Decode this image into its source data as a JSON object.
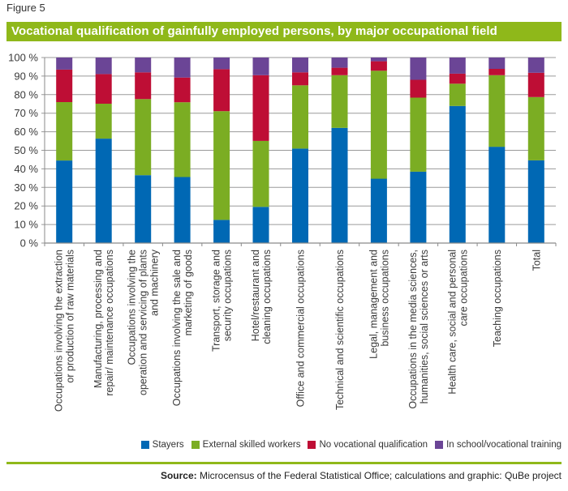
{
  "figure_label": "Figure 5",
  "source": {
    "label": "Source:",
    "text": " Microcensus of the Federal Statistical Office; calculations and graphic: QuBe project"
  },
  "chart_data": {
    "type": "bar",
    "stacked": true,
    "title": "Vocational qualification of gainfully employed persons, by major occupational field",
    "xlabel": "",
    "ylabel": "",
    "ylim": [
      0,
      100
    ],
    "yticks": [
      "0 %",
      "10 %",
      "20 %",
      "30 %",
      "40 %",
      "50 %",
      "60 %",
      "70 %",
      "80 %",
      "90 %",
      "100 %"
    ],
    "grid": true,
    "legend_position": "bottom-right",
    "categories": [
      [
        "Occupations involving the extraction",
        "or production of raw materials"
      ],
      [
        "Manufacturing, processing and",
        "repair/ maintenance occupations"
      ],
      [
        "Occupations involving the",
        "operation and servicing of plants",
        "and machinery"
      ],
      [
        "Occupations involving the sale and",
        "marketing of goods"
      ],
      [
        "Transport, storage and",
        "security occupations"
      ],
      [
        "Hotel/restaurant and",
        "cleaning occupations"
      ],
      [
        "Office and commercial occupations"
      ],
      [
        "Technical and scientific occupations"
      ],
      [
        "Legal, management and",
        "business occupations"
      ],
      [
        "Occupations in the media sciences,",
        "humanities, social sciences or arts"
      ],
      [
        "Health care, social and personal",
        "care occupations"
      ],
      [
        "Teaching occupations"
      ],
      [
        "Total"
      ]
    ],
    "series": [
      {
        "name": "Stayers",
        "color": "#0068b4",
        "values": [
          44.5,
          56.3,
          36.6,
          35.6,
          12.5,
          19.5,
          50.9,
          62.1,
          34.7,
          38.5,
          73.9,
          51.9,
          44.6
        ]
      },
      {
        "name": "External skilled workers",
        "color": "#7bad23",
        "values": [
          31.5,
          18.8,
          41.0,
          40.3,
          58.6,
          35.6,
          34.1,
          28.4,
          58.2,
          39.9,
          12.0,
          38.6,
          34.1
        ]
      },
      {
        "name": "No vocational qualification",
        "color": "#be0e35",
        "values": [
          17.5,
          16.0,
          14.4,
          13.3,
          22.6,
          35.4,
          7.0,
          4.0,
          5.1,
          9.6,
          5.4,
          3.4,
          13.1
        ]
      },
      {
        "name": "In school/vocational training",
        "color": "#6b4596",
        "values": [
          6.5,
          8.9,
          8.0,
          10.8,
          6.3,
          9.5,
          8.0,
          5.5,
          2.0,
          12.0,
          8.7,
          6.1,
          8.2
        ]
      }
    ]
  }
}
